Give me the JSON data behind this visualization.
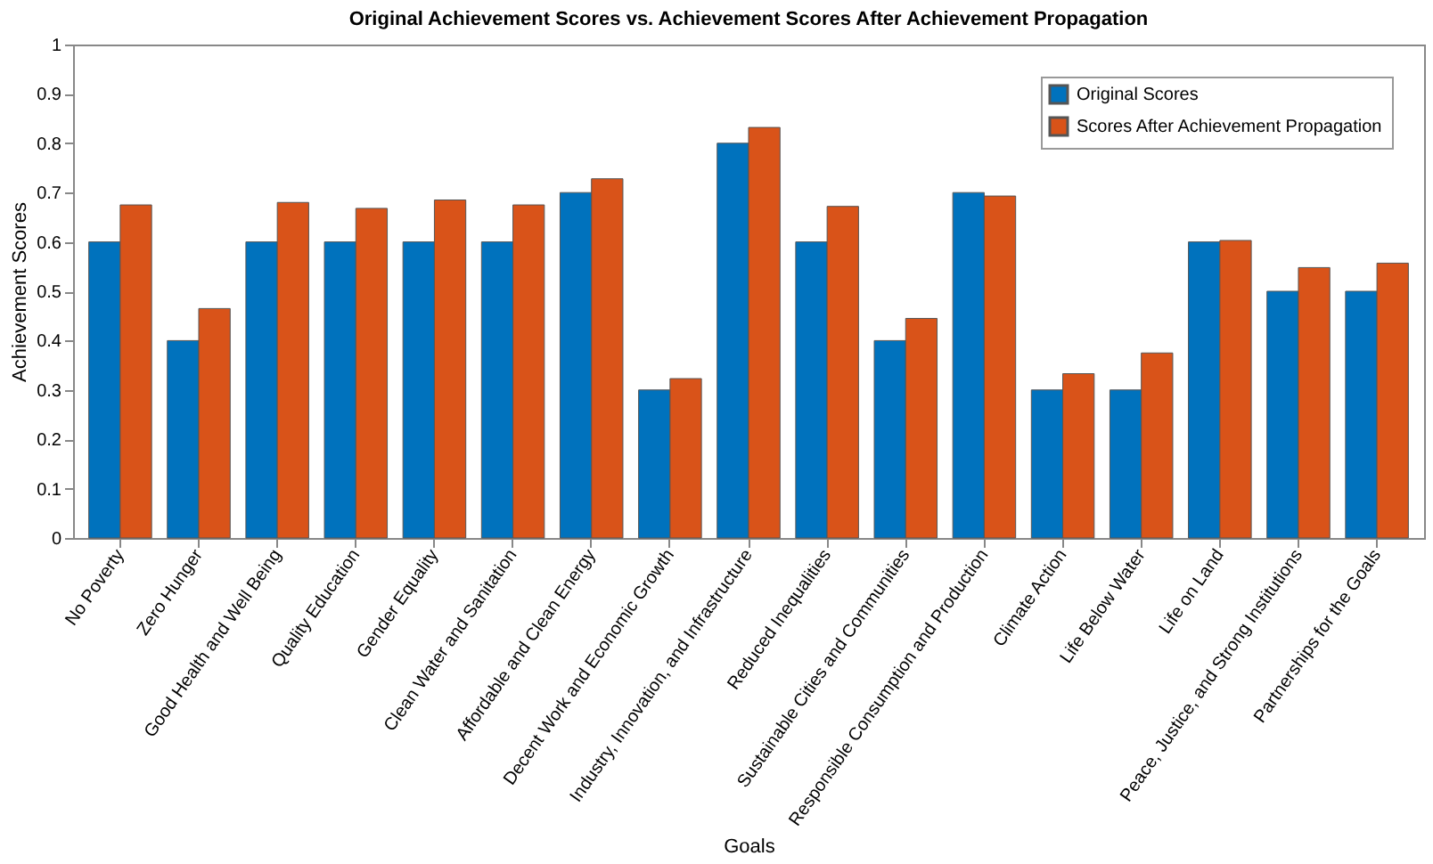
{
  "chart_data": {
    "type": "bar",
    "title": "Original Achievement Scores vs. Achievement Scores After Achievement Propagation",
    "xlabel": "Goals",
    "ylabel": "Achievement Scores",
    "categories": [
      "No Poverty",
      "Zero Hunger",
      "Good Health and Well Being",
      "Quality Education",
      "Gender Equality",
      "Clean Water and Sanitation",
      "Affordable and Clean Energy",
      "Decent Work and Economic Growth",
      "Industry, Innovation, and Infrastructure",
      "Reduced Inequalities",
      "Sustainable Cities and Communities",
      "Responsible Consumption and Production",
      "Climate Action",
      "Life Below Water",
      "Life on Land",
      "Peace, Justice, and Strong Institutions",
      "Partnerships for the Goals"
    ],
    "series": [
      {
        "name": "Original Scores",
        "color": "#0072bd",
        "values": [
          0.6,
          0.4,
          0.6,
          0.6,
          0.6,
          0.6,
          0.7,
          0.3,
          0.8,
          0.6,
          0.4,
          0.7,
          0.3,
          0.3,
          0.6,
          0.5,
          0.5
        ]
      },
      {
        "name": "Scores After Achievement Propagation",
        "color": "#d95319",
        "values": [
          0.675,
          0.465,
          0.68,
          0.668,
          0.685,
          0.675,
          0.728,
          0.323,
          0.832,
          0.672,
          0.445,
          0.693,
          0.333,
          0.375,
          0.603,
          0.548,
          0.557
        ]
      }
    ],
    "ylim": [
      0,
      1
    ],
    "yticks": [
      0,
      0.1,
      0.2,
      0.3,
      0.4,
      0.5,
      0.6,
      0.7,
      0.8,
      0.9,
      1
    ],
    "grid": false,
    "legend": "top right"
  }
}
